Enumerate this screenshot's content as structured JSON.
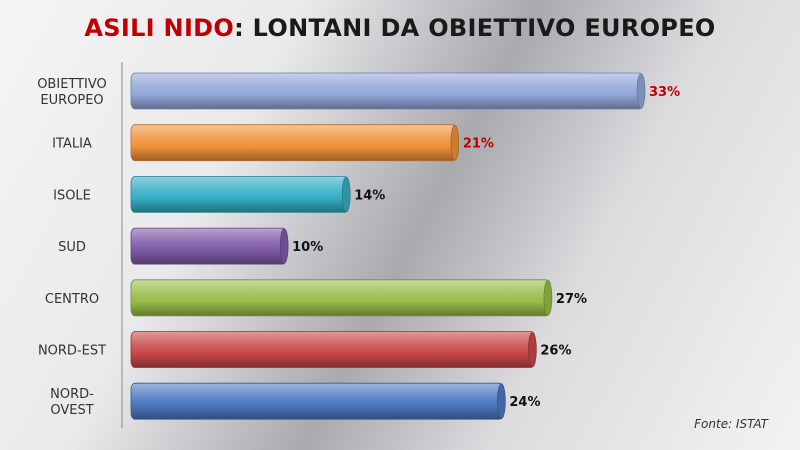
{
  "title": {
    "accent": "ASILI NIDO",
    "rest": ": LONTANI DA OBIETTIVO EUROPEO"
  },
  "source": "Fonte: ISTAT",
  "colors": {
    "obiettivo": "#93a7d9",
    "italia": "#f0913a",
    "isole": "#35aec4",
    "sud": "#7f5aa8",
    "centro": "#97bd48",
    "nord_est": "#c9474a",
    "nord_ovest": "#4c78bf",
    "highlight_text": "#c00000"
  },
  "chart_data": {
    "type": "bar",
    "orientation": "horizontal",
    "title": "ASILI NIDO: LONTANI DA OBIETTIVO EUROPEO",
    "categories": [
      [
        "OBIETTIVO",
        "EUROPEO"
      ],
      [
        "ITALIA"
      ],
      [
        "ISOLE"
      ],
      [
        "SUD"
      ],
      [
        "CENTRO"
      ],
      [
        "NORD-EST"
      ],
      [
        "NORD-",
        "OVEST"
      ]
    ],
    "values": [
      33,
      21,
      14,
      10,
      27,
      26,
      24
    ],
    "labels": [
      "33%",
      "21%",
      "14%",
      "10%",
      "27%",
      "26%",
      "24%"
    ],
    "highlighted": [
      true,
      true,
      false,
      false,
      false,
      false,
      false
    ],
    "bar_colors": [
      "#93a7d9",
      "#f0913a",
      "#35aec4",
      "#7f5aa8",
      "#97bd48",
      "#c9474a",
      "#4c78bf"
    ],
    "xlim": [
      0,
      33
    ],
    "grid": false,
    "legend": "none"
  }
}
